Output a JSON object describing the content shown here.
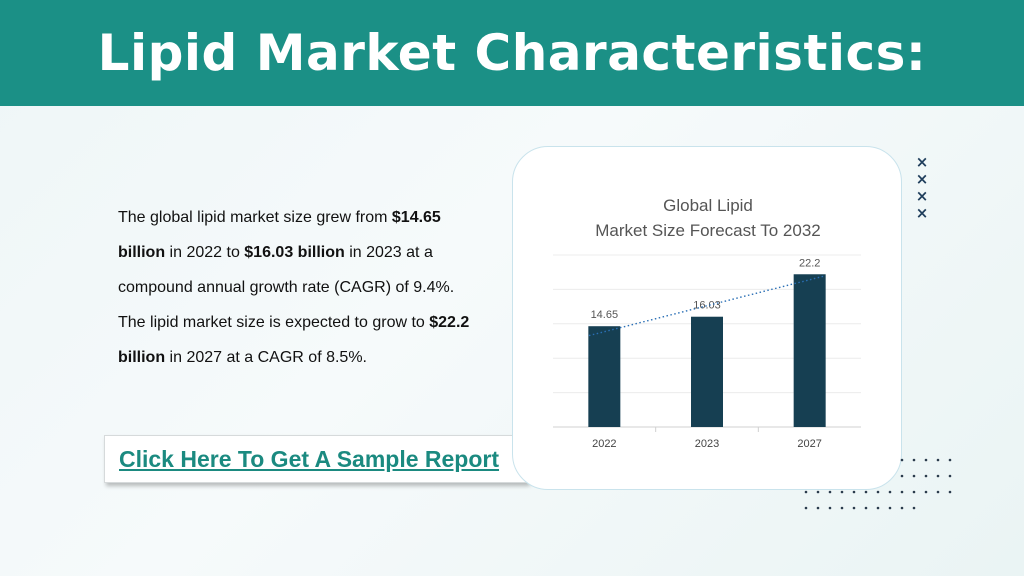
{
  "header": {
    "title": "Lipid Market Characteristics:"
  },
  "body": {
    "p1": "The global lipid market size grew from ",
    "b1": "$14.65 billion",
    "p2": " in 2022 to ",
    "b2": "$16.03 billion",
    "p3": " in 2023 at a compound annual growth rate (CAGR) of 9.4%. The lipid market size is expected to grow to ",
    "b3": "$22.2 billion",
    "p4": " in 2027 at a CAGR of 8.5%."
  },
  "cta": {
    "label": "Click Here To Get A Sample Report"
  },
  "decor": {
    "x_marks": [
      "×",
      "×",
      "×",
      "×"
    ]
  },
  "colors": {
    "header": "#1b9086",
    "bar": "#163f52",
    "link": "#1b8a80",
    "trend": "#2a6fb5"
  },
  "chart_data": {
    "type": "bar",
    "title_lines": [
      "Global Lipid",
      "Market Size Forecast To 2032"
    ],
    "categories": [
      "2022",
      "2023",
      "2027"
    ],
    "values": [
      14.65,
      16.03,
      22.2
    ],
    "data_labels": [
      "14.65",
      "16.03",
      "22.2"
    ],
    "ylim": [
      0,
      25
    ],
    "grid": true,
    "trendline": "dotted linear",
    "legend": "none",
    "xlabel": "",
    "ylabel": ""
  }
}
